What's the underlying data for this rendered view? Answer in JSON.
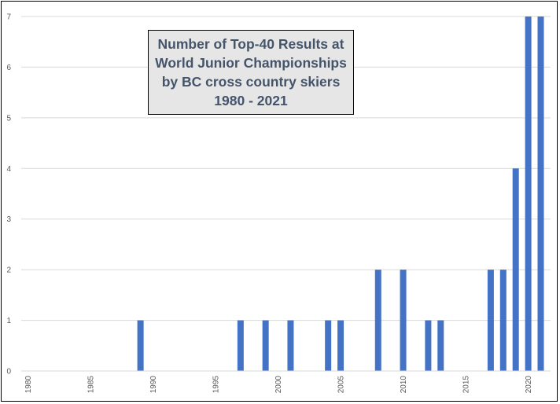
{
  "chart_data": {
    "type": "bar",
    "title_lines": [
      "Number of Top-40 Results at",
      "World Junior Championships",
      "by BC cross country skiers",
      "1980 - 2021"
    ],
    "xlabel": "",
    "ylabel": "",
    "xlim": [
      1980,
      2021
    ],
    "ylim": [
      0,
      7
    ],
    "yticks": [
      0,
      1,
      2,
      3,
      4,
      5,
      6,
      7
    ],
    "xticks": [
      1980,
      1985,
      1990,
      1995,
      2000,
      2005,
      2010,
      2015,
      2020
    ],
    "grid": true,
    "legend": "none",
    "bar_color": "#4472c4",
    "bars": [
      {
        "year": 1989,
        "value": 1
      },
      {
        "year": 1997,
        "value": 1
      },
      {
        "year": 1999,
        "value": 1
      },
      {
        "year": 2001,
        "value": 1
      },
      {
        "year": 2004,
        "value": 1
      },
      {
        "year": 2005,
        "value": 1
      },
      {
        "year": 2008,
        "value": 2
      },
      {
        "year": 2010,
        "value": 2
      },
      {
        "year": 2012,
        "value": 1
      },
      {
        "year": 2013,
        "value": 1
      },
      {
        "year": 2017,
        "value": 2
      },
      {
        "year": 2018,
        "value": 2
      },
      {
        "year": 2019,
        "value": 4
      },
      {
        "year": 2020,
        "value": 7
      },
      {
        "year": 2021,
        "value": 7
      }
    ]
  }
}
